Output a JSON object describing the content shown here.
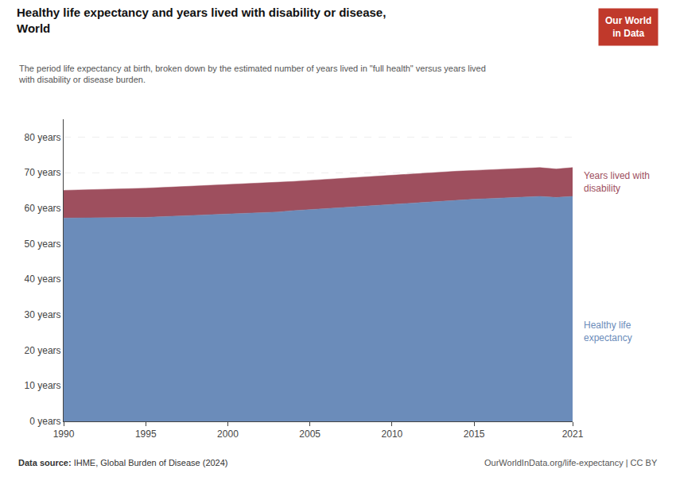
{
  "chart_data": {
    "type": "area",
    "stacked": true,
    "title": "Healthy life expectancy and years lived with disability or disease,\nWorld",
    "subtitle": "The period life expectancy at birth, broken down by the estimated number of years lived in \"full health\" versus years lived\nwith disability or disease burden.",
    "x": [
      1990,
      1991,
      1992,
      1993,
      1994,
      1995,
      1996,
      1997,
      1998,
      1999,
      2000,
      2001,
      2002,
      2003,
      2004,
      2005,
      2006,
      2007,
      2008,
      2009,
      2010,
      2011,
      2012,
      2013,
      2014,
      2015,
      2016,
      2017,
      2018,
      2019,
      2020,
      2021
    ],
    "series": [
      {
        "name": "Healthy life\nexpectancy",
        "color": "#6b8cba",
        "values": [
          57.2,
          57.2,
          57.3,
          57.3,
          57.4,
          57.4,
          57.6,
          57.8,
          57.9,
          58.1,
          58.3,
          58.5,
          58.7,
          58.9,
          59.3,
          59.6,
          59.9,
          60.2,
          60.5,
          60.7,
          61.0,
          61.3,
          61.6,
          61.9,
          62.2,
          62.5,
          62.7,
          62.9,
          63.1,
          63.3,
          63.0,
          63.3
        ]
      },
      {
        "name": "Years lived with\ndisability",
        "color": "#9e4f5e",
        "values": [
          7.8,
          7.9,
          7.9,
          8.0,
          8.0,
          8.2,
          8.2,
          8.2,
          8.3,
          8.3,
          8.3,
          8.3,
          8.3,
          8.3,
          8.2,
          8.2,
          8.2,
          8.2,
          8.2,
          8.2,
          8.2,
          8.2,
          8.2,
          8.2,
          8.2,
          8.1,
          8.1,
          8.1,
          8.1,
          8.1,
          8.0,
          8.1
        ]
      }
    ],
    "xlim": [
      1990,
      2021
    ],
    "xticks": [
      1990,
      1995,
      2000,
      2005,
      2010,
      2015,
      2021
    ],
    "ylim": [
      0,
      85
    ],
    "yticks": [
      {
        "value": 0,
        "label": "0 years"
      },
      {
        "value": 10,
        "label": "10 years"
      },
      {
        "value": 20,
        "label": "20 years"
      },
      {
        "value": 30,
        "label": "30 years"
      },
      {
        "value": 40,
        "label": "40 years"
      },
      {
        "value": 50,
        "label": "50 years"
      },
      {
        "value": 60,
        "label": "60 years"
      },
      {
        "value": 70,
        "label": "70 years"
      },
      {
        "value": 80,
        "label": "80 years"
      }
    ],
    "grid": "y",
    "source_label": "Data source:",
    "source": "IHME, Global Burden of Disease (2024)",
    "credit": "OurWorldInData.org/life-expectancy | CC BY",
    "logo": {
      "text": "Our World\nin Data",
      "color": "#c0392b"
    }
  }
}
